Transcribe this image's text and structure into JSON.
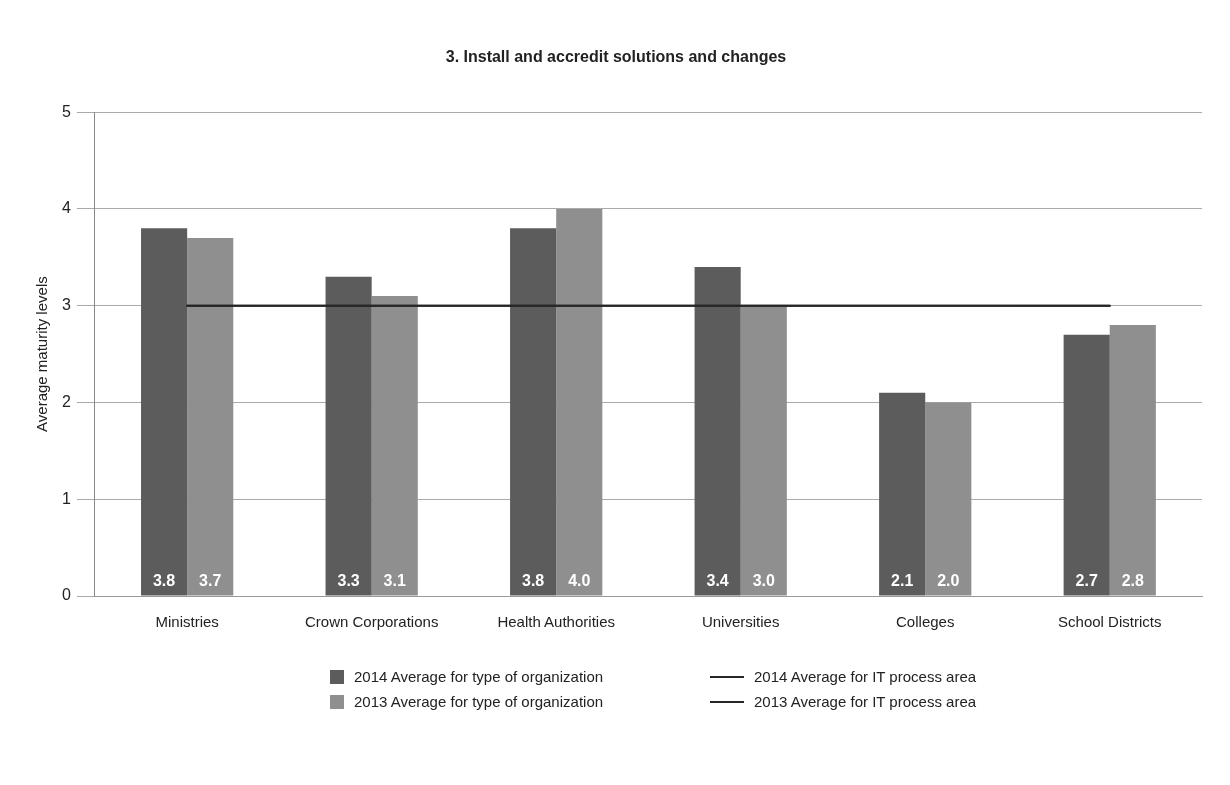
{
  "chart_data": {
    "type": "bar",
    "title": "3. Install and accredit solutions and changes",
    "ylabel": "Average maturity levels",
    "categories": [
      "Ministries",
      "Crown Corporations",
      "Health Authorities",
      "Universities",
      "Colleges",
      "School Districts"
    ],
    "series": [
      {
        "name": "2014 Average for type of organization",
        "color": "#5c5c5c",
        "values": [
          3.8,
          3.3,
          3.8,
          3.4,
          2.1,
          2.7
        ],
        "value_labels": [
          "3.8",
          "3.3",
          "3.8",
          "3.4",
          "2.1",
          "2.7"
        ]
      },
      {
        "name": "2013 Average for type of organization",
        "color": "#8f8f8f",
        "values": [
          3.7,
          3.1,
          4.0,
          3.0,
          2.0,
          2.8
        ],
        "value_labels": [
          "3.7",
          "3.1",
          "4.0",
          "3.0",
          "2.0",
          "2.8"
        ]
      },
      {
        "name": "2014 Average for IT process area",
        "type": "line",
        "color": "#262626",
        "values": [
          3,
          3,
          3,
          3,
          3,
          3
        ]
      },
      {
        "name": "2013 Average for IT process area",
        "type": "line",
        "color": "#262626",
        "values": [
          3,
          3,
          3,
          3,
          3,
          3
        ]
      }
    ],
    "marker": "none",
    "ylim": [
      0,
      5
    ],
    "yticks": [
      0,
      1,
      2,
      3,
      4,
      5
    ],
    "grid": "y",
    "legend": "bottom"
  }
}
